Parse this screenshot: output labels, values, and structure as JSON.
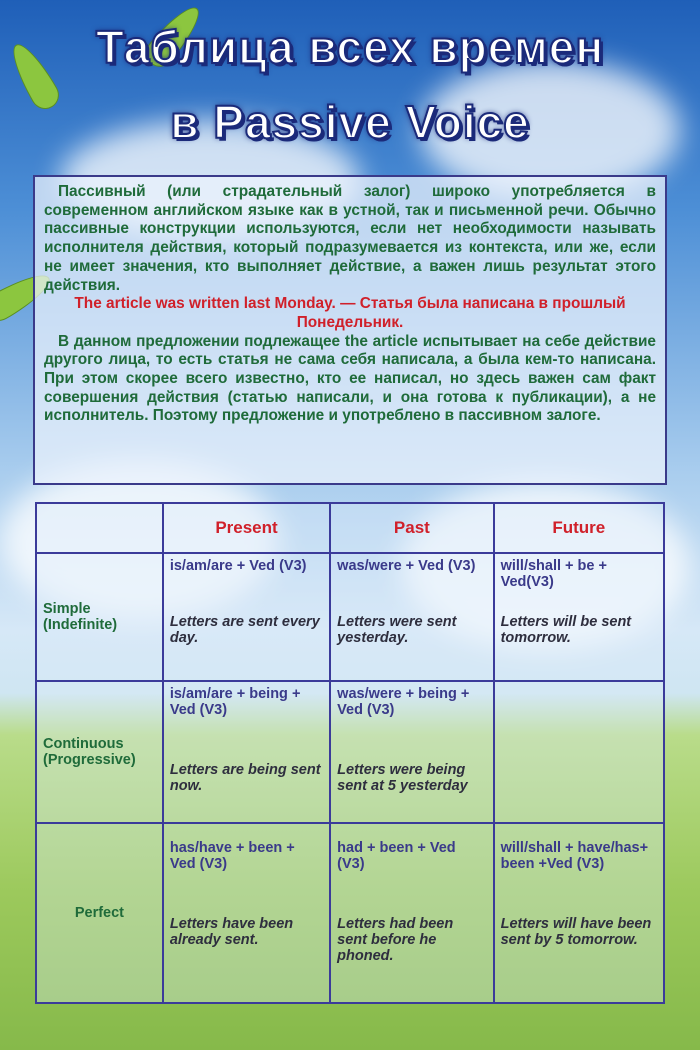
{
  "title": {
    "line1": "Таблица всех времен",
    "line2": "в Passive Voice"
  },
  "intro": {
    "p1": "Пассивный (или страдательный залог) широко употребляется в современном английском языке как в устной, так и письменной речи. Обычно пассивные конструкции используются, если нет необходимости называть исполнителя действия, который подразумевается из контекста, или же, если не имеет значения, кто выполняет действие, а важен лишь результат этого действия.",
    "example": "The article was written last Monday. — Статья была написана в прошлый Понедельник.",
    "p2": "В данном предложении подлежащее the article испытывает на себе действие другого лица, то есть статья не сама себя написала, а была кем-то написана. При этом скорее всего известно, кто ее написал, но здесь важен сам факт совершения действия (статью написали, и она готова к публикации), а не исполнитель. Поэтому предложение и употреблено в пассивном залоге."
  },
  "table": {
    "headers": [
      "Present",
      "Past",
      "Future"
    ],
    "rows": [
      {
        "label": "Simple (Indefinite)",
        "cells": [
          {
            "formula": "is/am/are + Ved (V3)",
            "example": "Letters are sent every day."
          },
          {
            "formula": "was/were + Ved (V3)",
            "example": "Letters were sent yesterday."
          },
          {
            "formula": "will/shall + be + Ved(V3)",
            "example": "Letters will be sent tomorrow."
          }
        ]
      },
      {
        "label": "Continuous (Progressive)",
        "cells": [
          {
            "formula": "is/am/are + being + Ved (V3)",
            "example": "Letters are being sent now."
          },
          {
            "formula": "was/were + being + Ved (V3)",
            "example": "Letters were being sent at 5 yesterday"
          },
          {
            "formula": "",
            "example": ""
          }
        ]
      },
      {
        "label": "Perfect",
        "cells": [
          {
            "formula": "has/have + been + Ved (V3)",
            "example": "Letters have been already sent."
          },
          {
            "formula": "had + been + Ved (V3)",
            "example": "Letters had been sent before he phoned."
          },
          {
            "formula": "will/shall + have/has+ been +Ved (V3)",
            "example": "Letters will have been sent by 5 tomorrow."
          }
        ]
      }
    ]
  },
  "colors": {
    "title_outline": "#1b2a7a",
    "body_text": "#1f6b3a",
    "accent_red": "#d0202a",
    "border": "#3b3b9a"
  }
}
